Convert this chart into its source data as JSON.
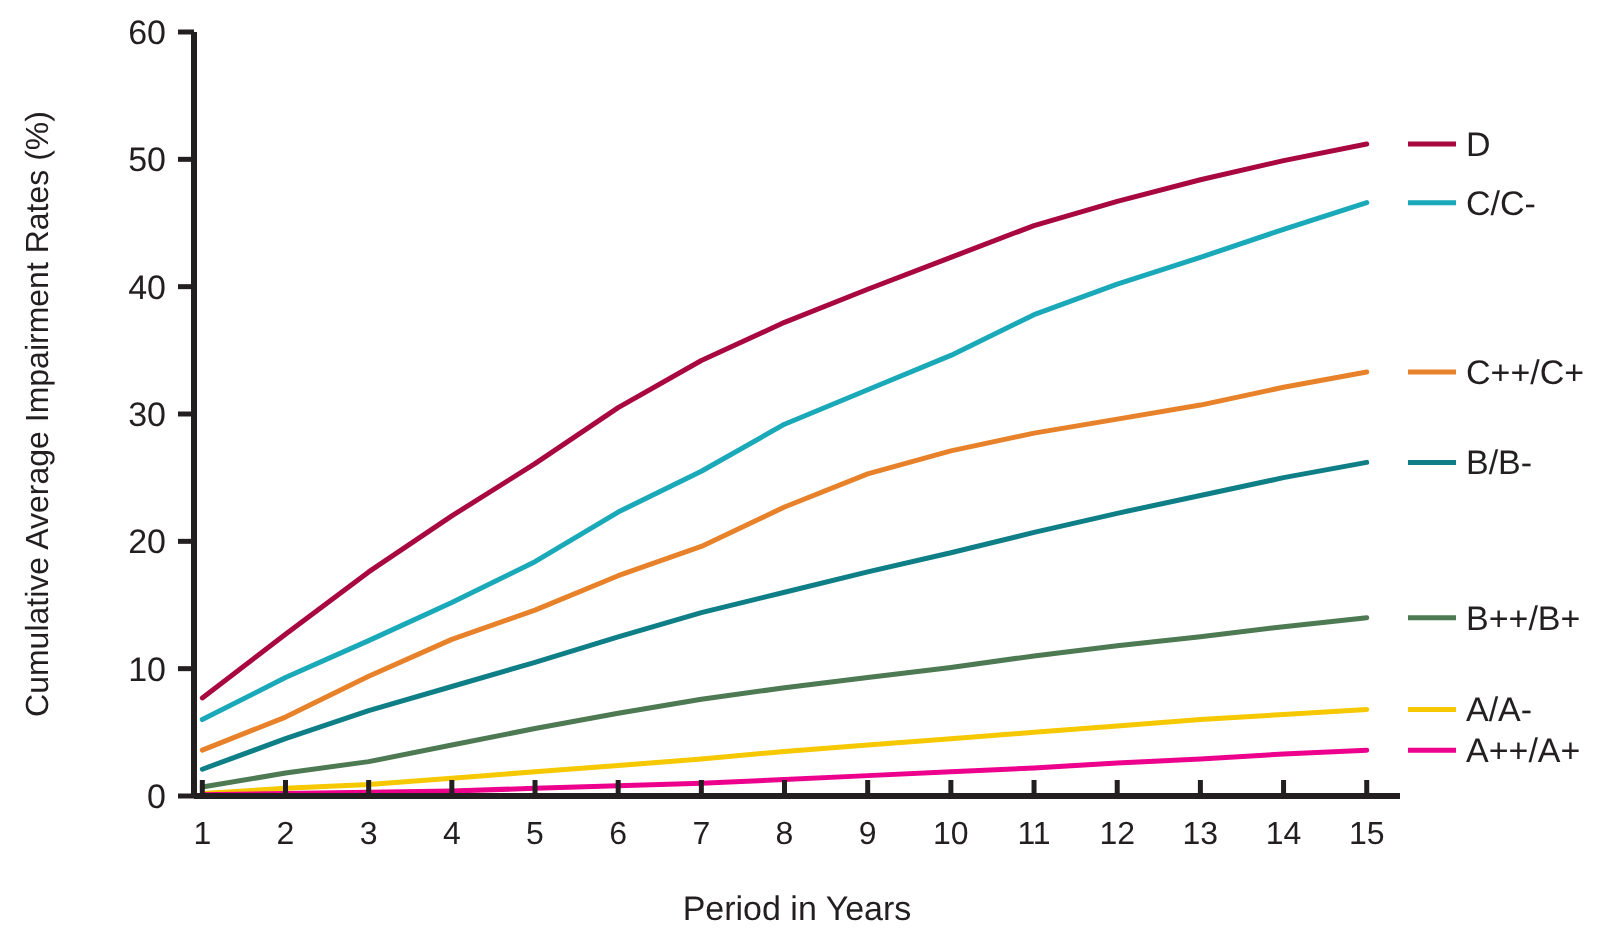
{
  "chart_data": {
    "type": "line",
    "xlabel": "Period in Years",
    "ylabel": "Cumulative Average Impairment Rates (%)",
    "x": [
      1,
      2,
      3,
      4,
      5,
      6,
      7,
      8,
      9,
      10,
      11,
      12,
      13,
      14,
      15
    ],
    "xlim": [
      0.9,
      15.4
    ],
    "xticks": [
      1,
      2,
      3,
      4,
      5,
      6,
      7,
      8,
      9,
      10,
      11,
      12,
      13,
      14,
      15
    ],
    "ylim": [
      0,
      60
    ],
    "yticks": [
      0,
      10,
      20,
      30,
      40,
      50,
      60
    ],
    "grid": false,
    "legend": "right",
    "marker": "none",
    "line_style": "solid",
    "series": [
      {
        "name": "D",
        "color": "#a8083f",
        "values": [
          7.7,
          12.7,
          17.6,
          22,
          26.1,
          30.5,
          34.2,
          37.2,
          39.8,
          42.3,
          44.8,
          46.7,
          48.4,
          49.9,
          51.2
        ]
      },
      {
        "name": "C/C-",
        "color": "#1aa9b8",
        "values": [
          6,
          9.3,
          12.2,
          15.2,
          18.4,
          22.3,
          25.5,
          29.2,
          31.9,
          34.6,
          37.8,
          40.2,
          42.3,
          44.5,
          46.6
        ]
      },
      {
        "name": "C++/C+",
        "color": "#e8822a",
        "values": [
          3.6,
          6.2,
          9.4,
          12.3,
          14.6,
          17.3,
          19.6,
          22.7,
          25.3,
          27.1,
          28.5,
          29.6,
          30.7,
          32.1,
          33.3
        ]
      },
      {
        "name": "B/B-",
        "color": "#0e7f86",
        "values": [
          2.1,
          4.5,
          6.7,
          8.6,
          10.5,
          12.5,
          14.4,
          16,
          17.6,
          19.1,
          20.7,
          22.2,
          23.6,
          25,
          26.2
        ]
      },
      {
        "name": "B++/B+",
        "color": "#4d7a52",
        "values": [
          0.7,
          1.8,
          2.7,
          4,
          5.3,
          6.5,
          7.6,
          8.5,
          9.3,
          10.1,
          11,
          11.8,
          12.5,
          13.3,
          14
        ]
      },
      {
        "name": "A/A-",
        "color": "#f5c800",
        "values": [
          0.2,
          0.6,
          0.9,
          1.4,
          1.9,
          2.4,
          2.9,
          3.5,
          4,
          4.5,
          5,
          5.5,
          6,
          6.4,
          6.8
        ]
      },
      {
        "name": "A++/A+",
        "color": "#ec008c",
        "values": [
          0.1,
          0.2,
          0.3,
          0.4,
          0.6,
          0.8,
          1,
          1.3,
          1.6,
          1.9,
          2.2,
          2.6,
          2.9,
          3.3,
          3.6
        ]
      }
    ]
  }
}
